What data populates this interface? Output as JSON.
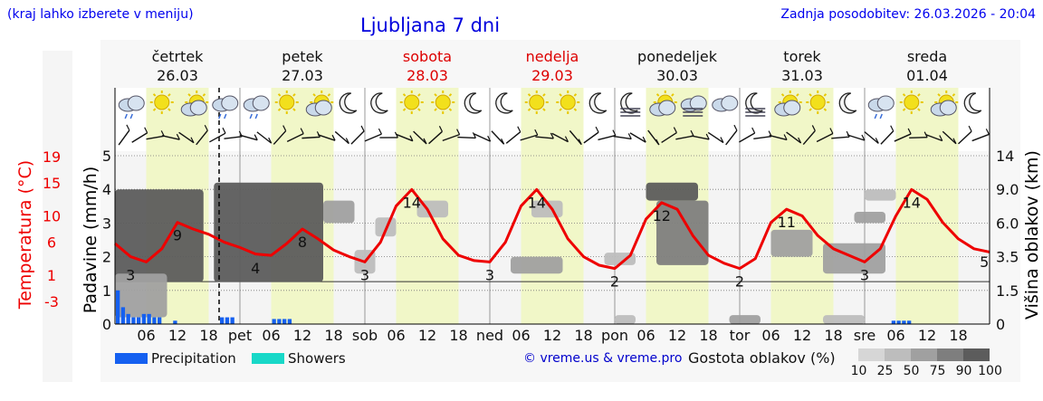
{
  "header": {
    "hint": "(kraj lahko izberete v meniju)",
    "title": "Ljubljana 7 dni",
    "updated": "Zadnja posodobitev: 26.03.2026 - 20:04"
  },
  "axis_labels": {
    "temperature": "Temperatura (°C)",
    "precipitation": "Padavine (mm/h)",
    "cloud_height": "Višina oblakov (km)"
  },
  "legend": {
    "precipitation": "Precipitation",
    "showers": "Showers",
    "copyright": "© vreme.us & vreme.pro",
    "density_title": "Gostota oblakov (%)",
    "density_levels": [
      "10",
      "25",
      "50",
      "75",
      "90",
      "100"
    ]
  },
  "colors": {
    "temperature_line": "#ee0000",
    "precipitation": "#1560f0",
    "showers": "#18d8c8",
    "weekend_text": "#dd0000",
    "daytime_band": "#f1f7c8"
  },
  "chart_data": {
    "type": "line",
    "days": [
      {
        "name": "četrtek",
        "date": "26.03",
        "weekend": false
      },
      {
        "name": "petek",
        "date": "27.03",
        "weekend": false
      },
      {
        "name": "sobota",
        "date": "28.03",
        "weekend": true
      },
      {
        "name": "nedelja",
        "date": "29.03",
        "weekend": true
      },
      {
        "name": "ponedeljek",
        "date": "30.03",
        "weekend": false
      },
      {
        "name": "torek",
        "date": "31.03",
        "weekend": false
      },
      {
        "name": "sreda",
        "date": "01.04",
        "weekend": false
      }
    ],
    "x_tick_labels": [
      "06",
      "12",
      "18",
      "pet",
      "06",
      "12",
      "18",
      "sob",
      "06",
      "12",
      "18",
      "ned",
      "06",
      "12",
      "18",
      "pon",
      "06",
      "12",
      "18",
      "tor",
      "06",
      "12",
      "18",
      "sre",
      "06",
      "12",
      "18"
    ],
    "temperature_ticks": [
      "19",
      "15",
      "10",
      "6",
      "1",
      "-3"
    ],
    "temperature_ylim": [
      -3,
      19
    ],
    "precipitation_ticks": [
      "0",
      "1",
      "2",
      "3",
      "4",
      "5"
    ],
    "precipitation_ylim": [
      0,
      5
    ],
    "cloud_height_ticks": [
      "0",
      "1.5",
      "3.5",
      "6.0",
      "9.0",
      "14"
    ],
    "x_hours_range": [
      0,
      168
    ],
    "now_hour": 20,
    "temperature": {
      "hours": [
        0,
        3,
        6,
        9,
        12,
        15,
        18,
        21,
        24,
        27,
        30,
        33,
        36,
        39,
        42,
        45,
        48,
        51,
        54,
        57,
        60,
        63,
        66,
        69,
        72,
        75,
        78,
        81,
        84,
        87,
        90,
        93,
        96,
        99,
        102,
        105,
        108,
        111,
        114,
        117,
        120,
        123,
        126,
        129,
        132,
        135,
        138,
        141,
        144,
        147,
        150,
        153,
        156,
        159,
        162,
        165,
        168
      ],
      "values": [
        5.8,
        3.8,
        3.0,
        5.0,
        9.0,
        8.0,
        7.2,
        6.0,
        5.2,
        4.2,
        4.0,
        5.8,
        8.0,
        6.5,
        4.8,
        3.8,
        3.0,
        6.0,
        11.5,
        14.0,
        11.0,
        6.5,
        4.0,
        3.2,
        3.0,
        6.0,
        11.5,
        14.0,
        11.0,
        6.5,
        3.8,
        2.5,
        2.0,
        4.0,
        9.5,
        12.0,
        11.0,
        7.0,
        4.0,
        2.8,
        2.0,
        3.5,
        9.0,
        11.0,
        10.0,
        7.0,
        5.0,
        4.0,
        3.0,
        5.0,
        10.0,
        14.0,
        12.5,
        9.0,
        6.5,
        5.0,
        4.5
      ],
      "labels": [
        {
          "hour": 3,
          "value": "3"
        },
        {
          "hour": 12,
          "value": "9"
        },
        {
          "hour": 27,
          "value": "4"
        },
        {
          "hour": 36,
          "value": "8"
        },
        {
          "hour": 48,
          "value": "3"
        },
        {
          "hour": 57,
          "value": "14"
        },
        {
          "hour": 72,
          "value": "3"
        },
        {
          "hour": 81,
          "value": "14"
        },
        {
          "hour": 96,
          "value": "2"
        },
        {
          "hour": 105,
          "value": "12"
        },
        {
          "hour": 120,
          "value": "2"
        },
        {
          "hour": 129,
          "value": "11"
        },
        {
          "hour": 144,
          "value": "3"
        },
        {
          "hour": 153,
          "value": "14"
        },
        {
          "hour": 167,
          "value": "5"
        }
      ]
    },
    "precipitation": {
      "hours": [
        0,
        1,
        2,
        3,
        4,
        5,
        6,
        7,
        8,
        11,
        20,
        21,
        22,
        30,
        31,
        32,
        33,
        149,
        150,
        151,
        152
      ],
      "values": [
        1.0,
        0.5,
        0.3,
        0.2,
        0.2,
        0.3,
        0.3,
        0.2,
        0.2,
        0.1,
        0.2,
        0.2,
        0.2,
        0.15,
        0.15,
        0.15,
        0.15,
        0.1,
        0.1,
        0.1,
        0.1
      ]
    },
    "cloud_density_blocks": [
      {
        "hour_from": 0,
        "hour_to": 17,
        "km_from": 2.0,
        "km_to": 9.0,
        "density": 90
      },
      {
        "hour_from": 0,
        "hour_to": 10,
        "km_from": 0.3,
        "km_to": 2.5,
        "density": 50
      },
      {
        "hour_from": 19,
        "hour_to": 40,
        "km_from": 2.0,
        "km_to": 10.0,
        "density": 90
      },
      {
        "hour_from": 40,
        "hour_to": 46,
        "km_from": 6.0,
        "km_to": 8.0,
        "density": 50
      },
      {
        "hour_from": 46,
        "hour_to": 50,
        "km_from": 2.5,
        "km_to": 4.0,
        "density": 25
      },
      {
        "hour_from": 50,
        "hour_to": 54,
        "km_from": 5.0,
        "km_to": 6.5,
        "density": 25
      },
      {
        "hour_from": 58,
        "hour_to": 64,
        "km_from": 6.5,
        "km_to": 8.0,
        "density": 25
      },
      {
        "hour_from": 76,
        "hour_to": 86,
        "km_from": 2.5,
        "km_to": 3.5,
        "density": 50
      },
      {
        "hour_from": 80,
        "hour_to": 86,
        "km_from": 6.5,
        "km_to": 8.0,
        "density": 25
      },
      {
        "hour_from": 94,
        "hour_to": 100,
        "km_from": 3.0,
        "km_to": 3.8,
        "density": 25
      },
      {
        "hour_from": 102,
        "hour_to": 112,
        "km_from": 8.0,
        "km_to": 10.0,
        "density": 90
      },
      {
        "hour_from": 104,
        "hour_to": 114,
        "km_from": 3.0,
        "km_to": 8.0,
        "density": 75
      },
      {
        "hour_from": 126,
        "hour_to": 134,
        "km_from": 3.5,
        "km_to": 5.5,
        "density": 50
      },
      {
        "hour_from": 136,
        "hour_to": 148,
        "km_from": 2.5,
        "km_to": 4.5,
        "density": 50
      },
      {
        "hour_from": 142,
        "hour_to": 148,
        "km_from": 6.0,
        "km_to": 7.0,
        "density": 50
      },
      {
        "hour_from": 144,
        "hour_to": 150,
        "km_from": 8.0,
        "km_to": 9.0,
        "density": 25
      },
      {
        "hour_from": 96,
        "hour_to": 100,
        "km_from": 0.0,
        "km_to": 0.4,
        "density": 25
      },
      {
        "hour_from": 118,
        "hour_to": 124,
        "km_from": 0.0,
        "km_to": 0.4,
        "density": 50
      },
      {
        "hour_from": 136,
        "hour_to": 144,
        "km_from": 0.0,
        "km_to": 0.4,
        "density": 25
      }
    ],
    "daytime_bands": [
      [
        6,
        18
      ],
      [
        30,
        42
      ],
      [
        54,
        66
      ],
      [
        78,
        90
      ],
      [
        102,
        114
      ],
      [
        126,
        138
      ],
      [
        150,
        162
      ]
    ],
    "weather_icons": [
      "cloud-rain",
      "sun",
      "partly-cloudy",
      "cloud-rain",
      "cloud-rain",
      "sun",
      "partly-cloudy",
      "moon",
      "moon",
      "sun",
      "sun",
      "moon",
      "moon",
      "sun",
      "sun",
      "moon",
      "moon-fog",
      "partly-cloudy",
      "cloud-fog",
      "cloud",
      "moon-fog",
      "partly-cloudy",
      "sun",
      "moon",
      "cloud-rain",
      "sun",
      "partly-cloudy",
      "moon"
    ]
  }
}
